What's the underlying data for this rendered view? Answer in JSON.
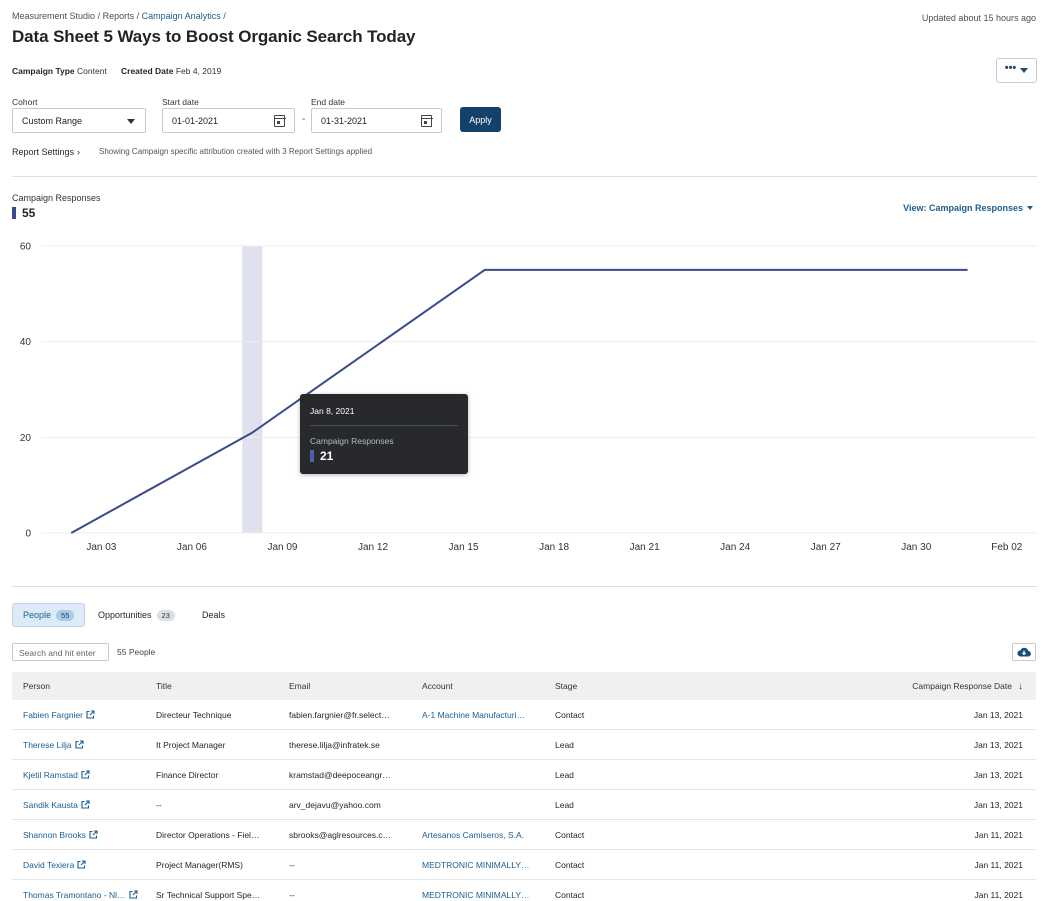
{
  "breadcrumb": {
    "part1": "Measurement Studio",
    "sep": "/",
    "part2": "Reports",
    "part3": "Campaign Analytics"
  },
  "updated": "Updated about 15 hours ago",
  "page_title": "Data Sheet 5 Ways to Boost Organic Search Today",
  "meta": {
    "campaign_type_label": "Campaign Type",
    "campaign_type_value": "Content",
    "created_date_label": "Created Date",
    "created_date_value": "Feb 4, 2019"
  },
  "more_button": {
    "label": "•••"
  },
  "filters": {
    "cohort_label": "Cohort",
    "cohort_value": "Custom Range",
    "start_label": "Start date",
    "start_value": "01-01-2021",
    "end_label": "End date",
    "end_value": "01-31-2021",
    "separator": "-",
    "apply_label": "Apply"
  },
  "report_settings": {
    "label": "Report Settings",
    "chevron": "›",
    "info": "Showing Campaign specific attribution created with 3 Report Settings applied"
  },
  "summary": {
    "label": "Campaign Responses",
    "value": "55"
  },
  "view_select": {
    "label": "View: Campaign Responses"
  },
  "tooltip": {
    "date": "Jan 8, 2021",
    "label": "Campaign Responses",
    "value": "21"
  },
  "colors": {
    "series": "#3a4a8c",
    "highlight": "#dfe1ef",
    "accent": "#1b5e91"
  },
  "chart_data": {
    "type": "line",
    "title": "Campaign Responses",
    "xlabel": "",
    "ylabel": "",
    "x_range": [
      0,
      33
    ],
    "ylim": [
      0,
      60
    ],
    "y_ticks": [
      0,
      20,
      40,
      60
    ],
    "x_ticks": [
      {
        "label": "Jan 03",
        "x": 2
      },
      {
        "label": "Jan 06",
        "x": 5
      },
      {
        "label": "Jan 09",
        "x": 8
      },
      {
        "label": "Jan 12",
        "x": 11
      },
      {
        "label": "Jan 15",
        "x": 14
      },
      {
        "label": "Jan 18",
        "x": 17
      },
      {
        "label": "Jan 21",
        "x": 20
      },
      {
        "label": "Jan 24",
        "x": 23
      },
      {
        "label": "Jan 27",
        "x": 26
      },
      {
        "label": "Jan 30",
        "x": 29
      },
      {
        "label": "Feb 02",
        "x": 32
      }
    ],
    "series": [
      {
        "name": "Campaign Responses",
        "points": [
          {
            "x": 1,
            "y": 0
          },
          {
            "x": 7,
            "y": 21
          },
          {
            "x": 14.7,
            "y": 55
          },
          {
            "x": 30.7,
            "y": 55
          }
        ]
      }
    ],
    "highlight": {
      "x": 7,
      "label": "Jan 8, 2021"
    },
    "grid": true
  },
  "tabs": [
    {
      "label": "People",
      "count": "55"
    },
    {
      "label": "Opportunities",
      "count": "23"
    },
    {
      "label": "Deals"
    }
  ],
  "search": {
    "placeholder": "Search and hit enter"
  },
  "people_count": "55 People",
  "table": {
    "headers": [
      "Person",
      "Title",
      "Email",
      "Account",
      "Stage",
      "Campaign Response Date"
    ],
    "sort_arrow": "↓",
    "rows": [
      {
        "person": "Fabien Fargnier",
        "title": "Directeur Technique",
        "email": "fabien.fargnier@fr.select…",
        "account": "A-1 Machine Manufacturi…",
        "stage": "Contact",
        "date": "Jan 13, 2021"
      },
      {
        "person": "Therese Lilja",
        "title": "It Project Manager",
        "email": "therese.lilja@infratek.se",
        "account": "",
        "stage": "Lead",
        "date": "Jan 13, 2021"
      },
      {
        "person": "Kjetil Ramstad",
        "title": "Finance Director",
        "email": "kramstad@deepoceangr…",
        "account": "",
        "stage": "Lead",
        "date": "Jan 13, 2021"
      },
      {
        "person": "Sandik Kausta",
        "title": "--",
        "email": "arv_dejavu@yahoo.com",
        "account": "",
        "stage": "Lead",
        "date": "Jan 13, 2021"
      },
      {
        "person": "Shannon Brooks",
        "title": "Director Operations - Fiel…",
        "email": "sbrooks@aglresources.c…",
        "account": "Artesanos Camiseros, S.A.",
        "stage": "Contact",
        "date": "Jan 11, 2021"
      },
      {
        "person": "David Texiera",
        "title": "Project Manager(RMS)",
        "email": "--",
        "account": "MEDTRONIC MINIMALLY…",
        "stage": "Contact",
        "date": "Jan 11, 2021"
      },
      {
        "person": "Thomas Tramontano - Nl…",
        "title": "Sr Technical Support Spe…",
        "email": "--",
        "account": "MEDTRONIC MINIMALLY…",
        "stage": "Contact",
        "date": "Jan 11, 2021"
      }
    ]
  }
}
